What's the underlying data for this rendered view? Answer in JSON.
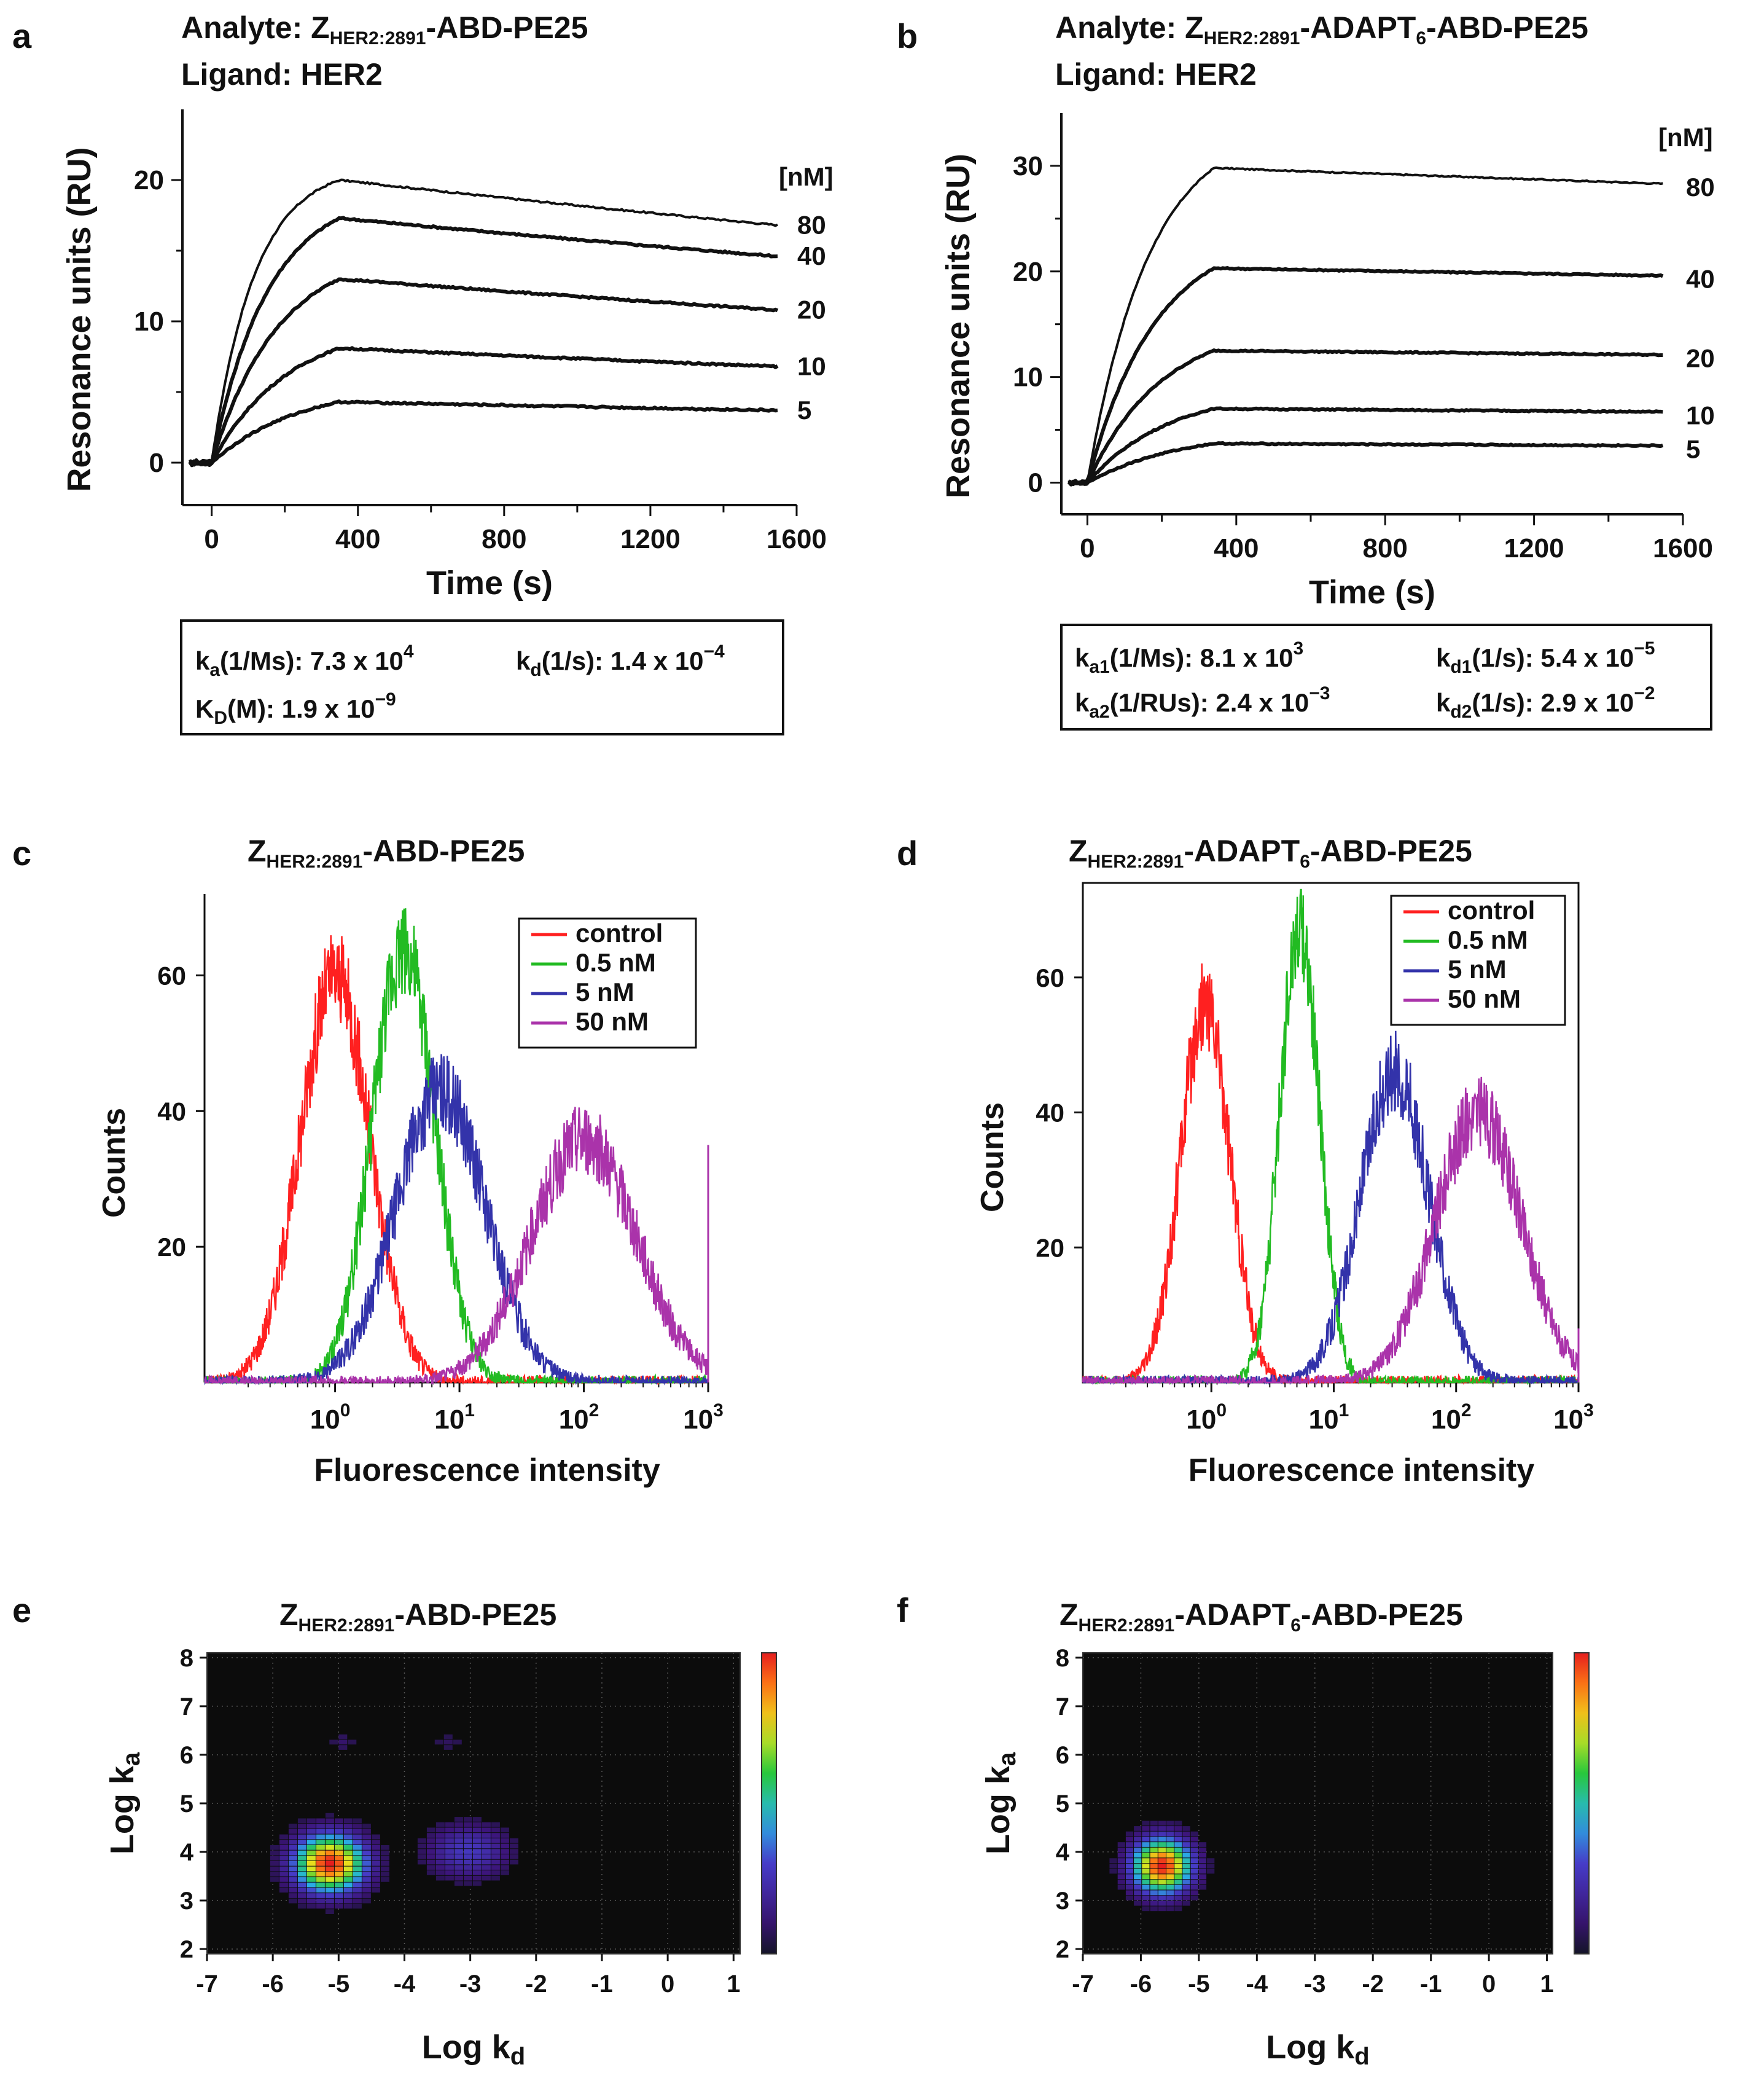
{
  "panels": {
    "a": {
      "letter": "a",
      "analyte_label": "Analyte:",
      "analyte_z": "Z",
      "analyte_sub": "HER2:2891",
      "analyte_rest": "-ABD-PE25",
      "ligand_label": "Ligand:",
      "ligand_value": "HER2",
      "unit_label": "[nM]",
      "box": {
        "ka_sym": "k",
        "ka_sub": "a",
        "ka_unit": "(1/Ms): 7.3 x 10",
        "ka_exp": "4",
        "kd_sym": "k",
        "kd_sub": "d",
        "kd_unit": "(1/s): 1.4 x 10",
        "kd_exp": "−4",
        "KD_sym": "K",
        "KD_sub": "D",
        "KD_unit": "(M): 1.9 x 10",
        "KD_exp": "−9"
      }
    },
    "b": {
      "letter": "b",
      "analyte_label": "Analyte:",
      "analyte_z": "Z",
      "analyte_sub": "HER2:2891",
      "analyte_rest1": "-ADAPT",
      "analyte_rest_sub": "6",
      "analyte_rest2": "-ABD-PE25",
      "ligand_label": "Ligand:",
      "ligand_value": "HER2",
      "unit_label": "[nM]",
      "box": {
        "ka1_sym": "k",
        "ka1_sub": "a1",
        "ka1_unit": "(1/Ms): 8.1 x 10",
        "ka1_exp": "3",
        "kd1_sym": "k",
        "kd1_sub": "d1",
        "kd1_unit": "(1/s): 5.4 x 10",
        "kd1_exp": "−5",
        "ka2_sym": "k",
        "ka2_sub": "a2",
        "ka2_unit": "(1/RUs): 2.4 x 10",
        "ka2_exp": "−3",
        "kd2_sym": "k",
        "kd2_sub": "d2",
        "kd2_unit": "(1/s): 2.9 x 10",
        "kd2_exp": "−2"
      }
    },
    "c": {
      "letter": "c",
      "title_z": "Z",
      "title_sub": "HER2:2891",
      "title_rest": "-ABD-PE25"
    },
    "d": {
      "letter": "d",
      "title_z": "Z",
      "title_sub": "HER2:2891",
      "title_rest1": "-ADAPT",
      "title_rest_sub": "6",
      "title_rest2": "-ABD-PE25"
    },
    "e": {
      "letter": "e",
      "title_z": "Z",
      "title_sub": "HER2:2891",
      "title_rest": "-ABD-PE25"
    },
    "f": {
      "letter": "f",
      "title_z": "Z",
      "title_sub": "HER2:2891",
      "title_rest1": "-ADAPT",
      "title_rest_sub": "6",
      "title_rest2": "-ABD-PE25"
    }
  },
  "axis_text": {
    "spr_ylabel": "Resonance units (RU)",
    "spr_xlabel": "Time (s)",
    "flow_ylabel": "Counts",
    "flow_xlabel": "Fluorescence intensity",
    "map_ylabel_main": "Log k",
    "map_ylabel_sub": "a",
    "map_xlabel_main": "Log k",
    "map_xlabel_sub": "d",
    "log_base": "10"
  },
  "colors": {
    "control": "#ff2020",
    "c05": "#22bb22",
    "c5": "#3333aa",
    "c50": "#aa33aa",
    "map_bg": "#0c0c0c"
  },
  "chart_data": [
    {
      "id": "a",
      "type": "line",
      "title": "Analyte: ZHER2:2891-ABD-PE25 / Ligand: HER2",
      "xlabel": "Time (s)",
      "ylabel": "Resonance units (RU)",
      "xlim": [
        -80,
        1600
      ],
      "ylim": [
        -3,
        25
      ],
      "xticks": [
        0,
        400,
        800,
        1200,
        1600
      ],
      "yticks": [
        0,
        10,
        20
      ],
      "legend_title": "[nM]",
      "association_end_s": 350,
      "end_s": 1550,
      "series": [
        {
          "name": "80",
          "plateau": 20.0,
          "end": 16.8,
          "k_on": 0.0085
        },
        {
          "name": "40",
          "plateau": 17.3,
          "end": 14.6,
          "k_on": 0.0065
        },
        {
          "name": "20",
          "plateau": 13.0,
          "end": 10.8,
          "k_on": 0.0055
        },
        {
          "name": "10",
          "plateau": 8.1,
          "end": 6.8,
          "k_on": 0.0048
        },
        {
          "name": "5",
          "plateau": 4.3,
          "end": 3.7,
          "k_on": 0.0042
        }
      ]
    },
    {
      "id": "b",
      "type": "line",
      "title": "Analyte: ZHER2:2891-ADAPT6-ABD-PE25 / Ligand: HER2",
      "xlabel": "Time (s)",
      "ylabel": "Resonance units (RU)",
      "xlim": [
        -70,
        1600
      ],
      "ylim": [
        -3,
        35
      ],
      "xticks": [
        0,
        400,
        800,
        1200,
        1600
      ],
      "yticks": [
        0,
        10,
        20,
        30
      ],
      "legend_title": "[nM]",
      "association_end_s": 340,
      "end_s": 1550,
      "series": [
        {
          "name": "80",
          "plateau": 29.8,
          "end": 28.3,
          "k_on": 0.006
        },
        {
          "name": "40",
          "plateau": 20.3,
          "end": 19.6,
          "k_on": 0.0055
        },
        {
          "name": "20",
          "plateau": 12.5,
          "end": 12.1,
          "k_on": 0.005
        },
        {
          "name": "10",
          "plateau": 7.0,
          "end": 6.7,
          "k_on": 0.0045
        },
        {
          "name": "5",
          "plateau": 3.7,
          "end": 3.5,
          "k_on": 0.004
        }
      ]
    },
    {
      "id": "c",
      "type": "line",
      "title": "ZHER2:2891-ABD-PE25",
      "xlabel": "Fluorescence intensity",
      "ylabel": "Counts",
      "xscale": "log",
      "xlim_log10": [
        -1.05,
        3.0
      ],
      "ylim": [
        0,
        72
      ],
      "yticks": [
        20,
        40,
        60
      ],
      "xtick_exponents": [
        0,
        1,
        2,
        3
      ],
      "series": [
        {
          "name": "control",
          "peak_log10": 0.0,
          "peak_count": 60,
          "width_log10": 0.28
        },
        {
          "name": "0.5 nM",
          "peak_log10": 0.55,
          "peak_count": 64,
          "width_log10": 0.25
        },
        {
          "name": "5 nM",
          "peak_log10": 0.85,
          "peak_count": 43,
          "width_log10": 0.36
        },
        {
          "name": "50 nM",
          "peak_log10": 2.0,
          "peak_count": 36,
          "width_log10": 0.42
        }
      ]
    },
    {
      "id": "d",
      "type": "line",
      "title": "ZHER2:2891-ADAPT6-ABD-PE25",
      "xlabel": "Fluorescence intensity",
      "ylabel": "Counts",
      "xscale": "log",
      "xlim_log10": [
        -1.05,
        3.0
      ],
      "ylim": [
        0,
        74
      ],
      "yticks": [
        20,
        40,
        60
      ],
      "xtick_exponents": [
        0,
        1,
        2,
        3
      ],
      "series": [
        {
          "name": "control",
          "peak_log10": -0.05,
          "peak_count": 56,
          "width_log10": 0.2
        },
        {
          "name": "0.5 nM",
          "peak_log10": 0.72,
          "peak_count": 68,
          "width_log10": 0.16
        },
        {
          "name": "5 nM",
          "peak_log10": 1.5,
          "peak_count": 46,
          "width_log10": 0.28
        },
        {
          "name": "50 nM",
          "peak_log10": 2.18,
          "peak_count": 40,
          "width_log10": 0.35
        }
      ]
    },
    {
      "id": "e",
      "type": "heatmap",
      "title": "ZHER2:2891-ABD-PE25",
      "xlabel": "Log kd",
      "ylabel": "Log ka",
      "xlim": [
        -7,
        1.1
      ],
      "ylim": [
        1.9,
        8.1
      ],
      "xticks": [
        -7,
        -6,
        -5,
        -4,
        -3,
        -2,
        -1,
        0,
        1
      ],
      "yticks": [
        2,
        3,
        4,
        5,
        6,
        7,
        8
      ],
      "peaks": [
        {
          "x": -5.2,
          "y": 3.7,
          "amp": 1.0,
          "sx": 0.38,
          "sy": 0.42
        },
        {
          "x": -3.1,
          "y": 3.95,
          "amp": 0.28,
          "sx": 0.45,
          "sy": 0.4
        },
        {
          "x": -5.0,
          "y": 6.2,
          "amp": 0.1,
          "sx": 0.15,
          "sy": 0.15
        },
        {
          "x": -3.4,
          "y": 6.2,
          "amp": 0.08,
          "sx": 0.2,
          "sy": 0.15
        }
      ]
    },
    {
      "id": "f",
      "type": "heatmap",
      "title": "ZHER2:2891-ADAPT6-ABD-PE25",
      "xlabel": "Log kd",
      "ylabel": "Log ka",
      "xlim": [
        -7,
        1.1
      ],
      "ylim": [
        1.9,
        8.1
      ],
      "xticks": [
        -7,
        -6,
        -5,
        -4,
        -3,
        -2,
        -1,
        0,
        1
      ],
      "yticks": [
        2,
        3,
        4,
        5,
        6,
        7,
        8
      ],
      "peaks": [
        {
          "x": -5.7,
          "y": 3.65,
          "amp": 1.0,
          "sx": 0.36,
          "sy": 0.4
        }
      ]
    }
  ]
}
